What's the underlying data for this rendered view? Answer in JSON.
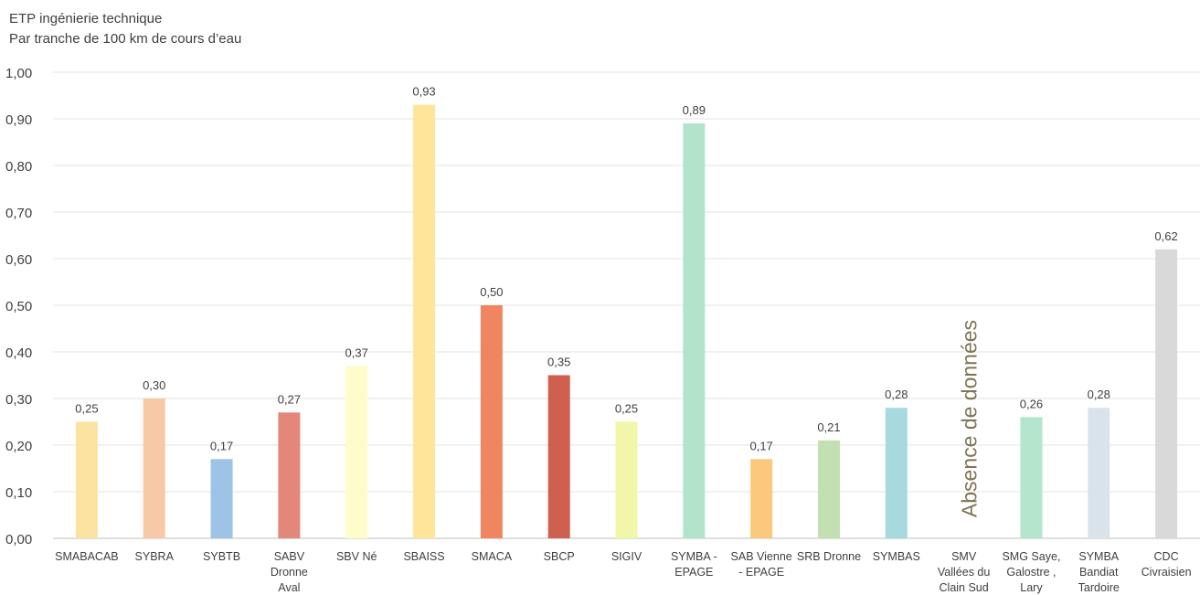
{
  "chart_data": {
    "type": "bar",
    "title": "ETP ingénierie technique",
    "subtitle": "Par tranche de 100 km de cours d’eau",
    "categories": [
      [
        "SMABACAB"
      ],
      [
        "SYBRA"
      ],
      [
        "SYBTB"
      ],
      [
        "SABV",
        "Dronne",
        "Aval"
      ],
      [
        "SBV Né"
      ],
      [
        "SBAISS"
      ],
      [
        "SMACA"
      ],
      [
        "SBCP"
      ],
      [
        "SIGIV"
      ],
      [
        "SYMBA -",
        "EPAGE"
      ],
      [
        "SAB Vienne",
        "- EPAGE"
      ],
      [
        "SRB Dronne"
      ],
      [
        "SYMBAS"
      ],
      [
        "SMV",
        "Vallées du",
        "Clain Sud"
      ],
      [
        "SMG Saye,",
        "Galostre ,",
        "Lary"
      ],
      [
        "SYMBA",
        "Bandiat",
        "Tardoire"
      ],
      [
        "CDC",
        "Civraisien"
      ]
    ],
    "values": [
      0.25,
      0.3,
      0.17,
      0.27,
      0.37,
      0.93,
      0.5,
      0.35,
      0.25,
      0.89,
      0.17,
      0.21,
      0.28,
      null,
      0.26,
      0.28,
      0.62
    ],
    "data_labels": [
      "0,25",
      "0,30",
      "0,17",
      "0,27",
      "0,37",
      "0,93",
      "0,50",
      "0,35",
      "0,25",
      "0,89",
      "0,17",
      "0,21",
      "0,28",
      "",
      "0,26",
      "0,28",
      "0,62"
    ],
    "colors": [
      "#fde3a2",
      "#f8c9a6",
      "#9dc3e6",
      "#e3877a",
      "#fffccc",
      "#fee59a",
      "#ef8660",
      "#cf5f4e",
      "#f2f6a8",
      "#b1e4ca",
      "#fbc97d",
      "#c3e0b2",
      "#a6dadf",
      "#ffffff",
      "#b3e6cc",
      "#d9e3ec",
      "#d9d9d9"
    ],
    "ylim": [
      0,
      1.0
    ],
    "yticks": [
      "0,00",
      "0,10",
      "0,20",
      "0,30",
      "0,40",
      "0,50",
      "0,60",
      "0,70",
      "0,80",
      "0,90",
      "1,00"
    ],
    "grid": true,
    "annotations": [
      {
        "text": "Absence de données",
        "category_index": 13,
        "color": "#7f7455"
      }
    ]
  }
}
